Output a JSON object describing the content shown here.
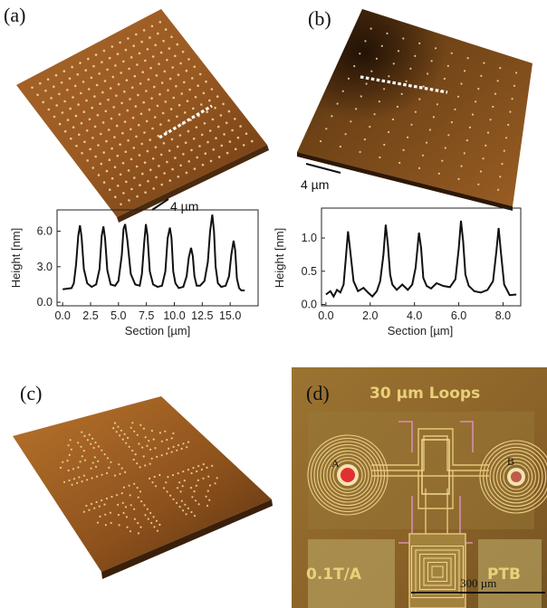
{
  "panels": {
    "a": {
      "label": "(a)",
      "scalebar": "4 µm"
    },
    "b": {
      "label": "(b)",
      "scalebar": "4 µm"
    },
    "c": {
      "label": "(c)"
    },
    "d": {
      "label": "(d)",
      "title": "30 µm Loops",
      "marker_a": "A",
      "marker_b": "B",
      "left_pad_text": "0.1T/A",
      "right_pad_text": "PTB",
      "scalebar": "300 µm"
    }
  },
  "colors": {
    "afm_dark": "#6b3a10",
    "afm_mid": "#a25f22",
    "afm_light": "#c98a3c",
    "dot": "#f3d9a0",
    "photo_bg": "#8f6a2a",
    "trace": "#111111"
  },
  "chart_data": [
    {
      "type": "line",
      "panel": "a",
      "xlabel": "Section [µm]",
      "ylabel": "Height [nm]",
      "xlim": [
        -0.5,
        17.5
      ],
      "ylim": [
        -0.3,
        7.8
      ],
      "xticks": [
        "0.0",
        "2.5",
        "5.0",
        "7.5",
        "10.0",
        "12.5",
        "15.0"
      ],
      "xtick_values": [
        0,
        2.5,
        5,
        7.5,
        10,
        12.5,
        15
      ],
      "yticks": [
        "0.0",
        "3.0",
        "6.0"
      ],
      "ytick_values": [
        0,
        3,
        6
      ],
      "series": [
        {
          "x": [
            0.0,
            0.8,
            1.0,
            1.2,
            1.4,
            1.55,
            1.7,
            1.9,
            2.2,
            2.6,
            3.0,
            3.3,
            3.5,
            3.65,
            3.8,
            4.0,
            4.3,
            4.7,
            5.0,
            5.3,
            5.45,
            5.6,
            5.8,
            6.1,
            6.5,
            6.9,
            7.1,
            7.3,
            7.45,
            7.6,
            7.8,
            8.1,
            8.5,
            8.9,
            9.2,
            9.4,
            9.6,
            9.75,
            9.9,
            10.1,
            10.4,
            10.8,
            11.1,
            11.3,
            11.5,
            11.65,
            11.8,
            12.0,
            12.3,
            12.7,
            13.0,
            13.2,
            13.4,
            13.55,
            13.7,
            13.9,
            14.2,
            14.6,
            14.9,
            15.1,
            15.3,
            15.45,
            15.6,
            15.8,
            16.0,
            16.3
          ],
          "y": [
            1.1,
            1.2,
            1.6,
            3.2,
            5.6,
            6.5,
            5.5,
            2.8,
            1.6,
            1.3,
            1.5,
            2.8,
            5.6,
            6.4,
            5.4,
            2.7,
            1.5,
            1.4,
            1.8,
            4.0,
            6.2,
            6.6,
            5.2,
            2.4,
            1.5,
            1.4,
            2.4,
            5.0,
            6.6,
            5.6,
            2.6,
            1.5,
            1.3,
            1.4,
            2.6,
            5.4,
            6.3,
            5.4,
            2.6,
            1.6,
            1.2,
            1.3,
            2.2,
            3.8,
            4.6,
            3.9,
            2.2,
            1.4,
            1.4,
            1.8,
            3.4,
            6.0,
            7.4,
            6.0,
            3.0,
            1.6,
            1.3,
            1.4,
            2.2,
            4.0,
            5.2,
            4.4,
            2.0,
            1.2,
            1.0,
            1.0
          ]
        }
      ]
    },
    {
      "type": "line",
      "panel": "b",
      "xlabel": "Section [µm]",
      "ylabel": "Height [nm]",
      "xlim": [
        -0.2,
        8.8
      ],
      "ylim": [
        -0.02,
        1.45
      ],
      "xticks": [
        "0.0",
        "2.0",
        "4.0",
        "6.0",
        "8.0"
      ],
      "xtick_values": [
        0,
        2,
        4,
        6,
        8
      ],
      "yticks": [
        "0.0",
        "0.5",
        "1.0"
      ],
      "ytick_values": [
        0,
        0.5,
        1.0
      ],
      "series": [
        {
          "x": [
            0.0,
            0.2,
            0.35,
            0.5,
            0.65,
            0.8,
            0.9,
            1.0,
            1.1,
            1.25,
            1.45,
            1.7,
            1.9,
            2.1,
            2.3,
            2.45,
            2.6,
            2.7,
            2.8,
            2.9,
            3.0,
            3.2,
            3.45,
            3.7,
            3.9,
            4.05,
            4.2,
            4.3,
            4.4,
            4.55,
            4.75,
            5.0,
            5.3,
            5.6,
            5.85,
            6.0,
            6.1,
            6.2,
            6.3,
            6.45,
            6.7,
            7.0,
            7.3,
            7.55,
            7.7,
            7.8,
            7.9,
            8.05,
            8.3,
            8.6
          ],
          "y": [
            0.15,
            0.2,
            0.12,
            0.22,
            0.18,
            0.3,
            0.7,
            1.1,
            0.8,
            0.35,
            0.2,
            0.25,
            0.18,
            0.12,
            0.2,
            0.35,
            0.75,
            1.2,
            0.9,
            0.45,
            0.3,
            0.22,
            0.3,
            0.22,
            0.3,
            0.55,
            1.08,
            0.85,
            0.4,
            0.28,
            0.24,
            0.32,
            0.28,
            0.26,
            0.38,
            0.85,
            1.26,
            0.95,
            0.45,
            0.28,
            0.2,
            0.18,
            0.22,
            0.35,
            0.8,
            1.15,
            0.8,
            0.3,
            0.14,
            0.15
          ]
        }
      ]
    }
  ]
}
